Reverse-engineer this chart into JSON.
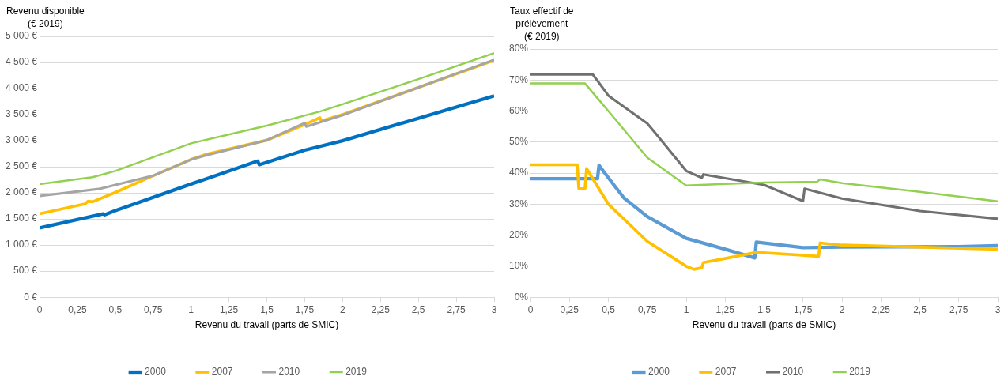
{
  "chart_data": [
    {
      "type": "line",
      "ylabel": "Revenu disponible\n(€ 2019)",
      "xlabel": "Revenu du travail (parts de SMIC)",
      "xlim": [
        0,
        3
      ],
      "xticks": [
        0,
        {
          "value": 0.25,
          "label": "0,25"
        },
        {
          "value": 0.5,
          "label": "0,5"
        },
        {
          "value": 0.75,
          "label": "0,75"
        },
        1,
        {
          "value": 1.25,
          "label": "1,25"
        },
        {
          "value": 1.5,
          "label": "1,5"
        },
        {
          "value": 1.75,
          "label": "1,75"
        },
        2,
        {
          "value": 2.25,
          "label": "2,25"
        },
        {
          "value": 2.5,
          "label": "2,5"
        },
        {
          "value": 2.75,
          "label": "2,75"
        },
        3
      ],
      "ylim": [
        0,
        5000
      ],
      "yticks": [
        {
          "value": 0,
          "label": "0 €"
        },
        {
          "value": 500,
          "label": "500 €"
        },
        {
          "value": 1000,
          "label": "1 000 €"
        },
        {
          "value": 1500,
          "label": "1 500 €"
        },
        {
          "value": 2000,
          "label": "2 000 €"
        },
        {
          "value": 2500,
          "label": "2 500 €"
        },
        {
          "value": 3000,
          "label": "3 000 €"
        },
        {
          "value": 3500,
          "label": "3 500 €"
        },
        {
          "value": 4000,
          "label": "4 000 €"
        },
        {
          "value": 4500,
          "label": "4 500 €"
        },
        {
          "value": 5000,
          "label": "5 000 €"
        }
      ],
      "grid": "y",
      "legend": "bottom",
      "marker": "none",
      "series": [
        {
          "name": "2000",
          "color": "#0070c0",
          "x": [
            0,
            0.42,
            0.43,
            0.5,
            1,
            1.44,
            1.45,
            1.75,
            2,
            3
          ],
          "values": [
            1330,
            1600,
            1580,
            1660,
            2170,
            2610,
            2540,
            2820,
            3000,
            3860
          ]
        },
        {
          "name": "2007",
          "color": "#ffc000",
          "x": [
            0,
            0.3,
            0.32,
            0.35,
            0.5,
            0.75,
            1,
            1.1,
            1.5,
            1.75,
            1.85,
            1.86,
            2,
            3
          ],
          "values": [
            1600,
            1790,
            1840,
            1830,
            2010,
            2330,
            2640,
            2740,
            3010,
            3310,
            3440,
            3380,
            3500,
            4540
          ]
        },
        {
          "name": "2010",
          "color": "#a5a5a5",
          "x": [
            0,
            0.4,
            0.75,
            1,
            1.1,
            1.5,
            1.75,
            1.76,
            2,
            3
          ],
          "values": [
            1940,
            2080,
            2330,
            2640,
            2720,
            3010,
            3340,
            3270,
            3490,
            4550
          ]
        },
        {
          "name": "2019",
          "color": "#92d050",
          "x": [
            0,
            0.35,
            0.5,
            1,
            1.5,
            1.85,
            2,
            2.5,
            3
          ],
          "values": [
            2170,
            2300,
            2420,
            2950,
            3290,
            3560,
            3700,
            4180,
            4680
          ]
        }
      ]
    },
    {
      "type": "line",
      "ylabel": "Taux effectif de\nprélèvement\n(€ 2019)",
      "xlabel": "Revenu du travail (parts de SMIC)",
      "xlim": [
        0,
        3
      ],
      "xticks": [
        0,
        {
          "value": 0.25,
          "label": "0,25"
        },
        {
          "value": 0.5,
          "label": "0,5"
        },
        {
          "value": 0.75,
          "label": "0,75"
        },
        1,
        {
          "value": 1.25,
          "label": "1,25"
        },
        {
          "value": 1.5,
          "label": "1,5"
        },
        {
          "value": 1.75,
          "label": "1,75"
        },
        2,
        {
          "value": 2.25,
          "label": "2,25"
        },
        {
          "value": 2.5,
          "label": "2,5"
        },
        {
          "value": 2.75,
          "label": "2,75"
        },
        3
      ],
      "ylim": [
        0,
        80
      ],
      "yticks": [
        {
          "value": 0,
          "label": "0%"
        },
        {
          "value": 10,
          "label": "10%"
        },
        {
          "value": 20,
          "label": "20%"
        },
        {
          "value": 30,
          "label": "30%"
        },
        {
          "value": 40,
          "label": "40%"
        },
        {
          "value": 50,
          "label": "50%"
        },
        {
          "value": 60,
          "label": "60%"
        },
        {
          "value": 70,
          "label": "70%"
        },
        {
          "value": 80,
          "label": "80%"
        }
      ],
      "grid": "y",
      "legend": "bottom",
      "marker": "none",
      "series": [
        {
          "name": "2000",
          "color": "#5b9bd5",
          "x": [
            0,
            0.43,
            0.44,
            0.5,
            0.6,
            0.75,
            1,
            1.25,
            1.44,
            1.45,
            1.75,
            2,
            2.75,
            3
          ],
          "values": [
            38.2,
            38.2,
            42.5,
            38.5,
            32,
            26,
            19,
            15.5,
            12.7,
            17.8,
            16,
            16.2,
            16.3,
            16.6
          ]
        },
        {
          "name": "2007",
          "color": "#ffc000",
          "x": [
            0,
            0.3,
            0.31,
            0.35,
            0.36,
            0.5,
            0.75,
            1,
            1.05,
            1.1,
            1.11,
            1.25,
            1.45,
            1.85,
            1.86,
            2,
            3
          ],
          "values": [
            42.7,
            42.7,
            35,
            35,
            41.5,
            30,
            18,
            10,
            9,
            9.5,
            11.2,
            12.5,
            14.5,
            13.2,
            17.5,
            16.8,
            15.5
          ]
        },
        {
          "name": "2010",
          "color": "#707070",
          "x": [
            0,
            0.4,
            0.5,
            0.75,
            0.8,
            1,
            1.1,
            1.11,
            1.5,
            1.75,
            1.76,
            2,
            2.5,
            3
          ],
          "values": [
            71.8,
            71.8,
            65,
            56,
            53,
            40.7,
            38.5,
            39.6,
            36.2,
            31,
            35,
            31.8,
            27.8,
            25.3
          ]
        },
        {
          "name": "2019",
          "color": "#92d050",
          "x": [
            0,
            0.35,
            0.5,
            0.75,
            1,
            1.25,
            1.5,
            1.84,
            1.86,
            2,
            2.5,
            3
          ],
          "values": [
            68.9,
            68.9,
            60,
            45,
            36,
            36.5,
            37,
            37.2,
            38,
            36.8,
            34,
            30.9
          ]
        }
      ]
    }
  ]
}
